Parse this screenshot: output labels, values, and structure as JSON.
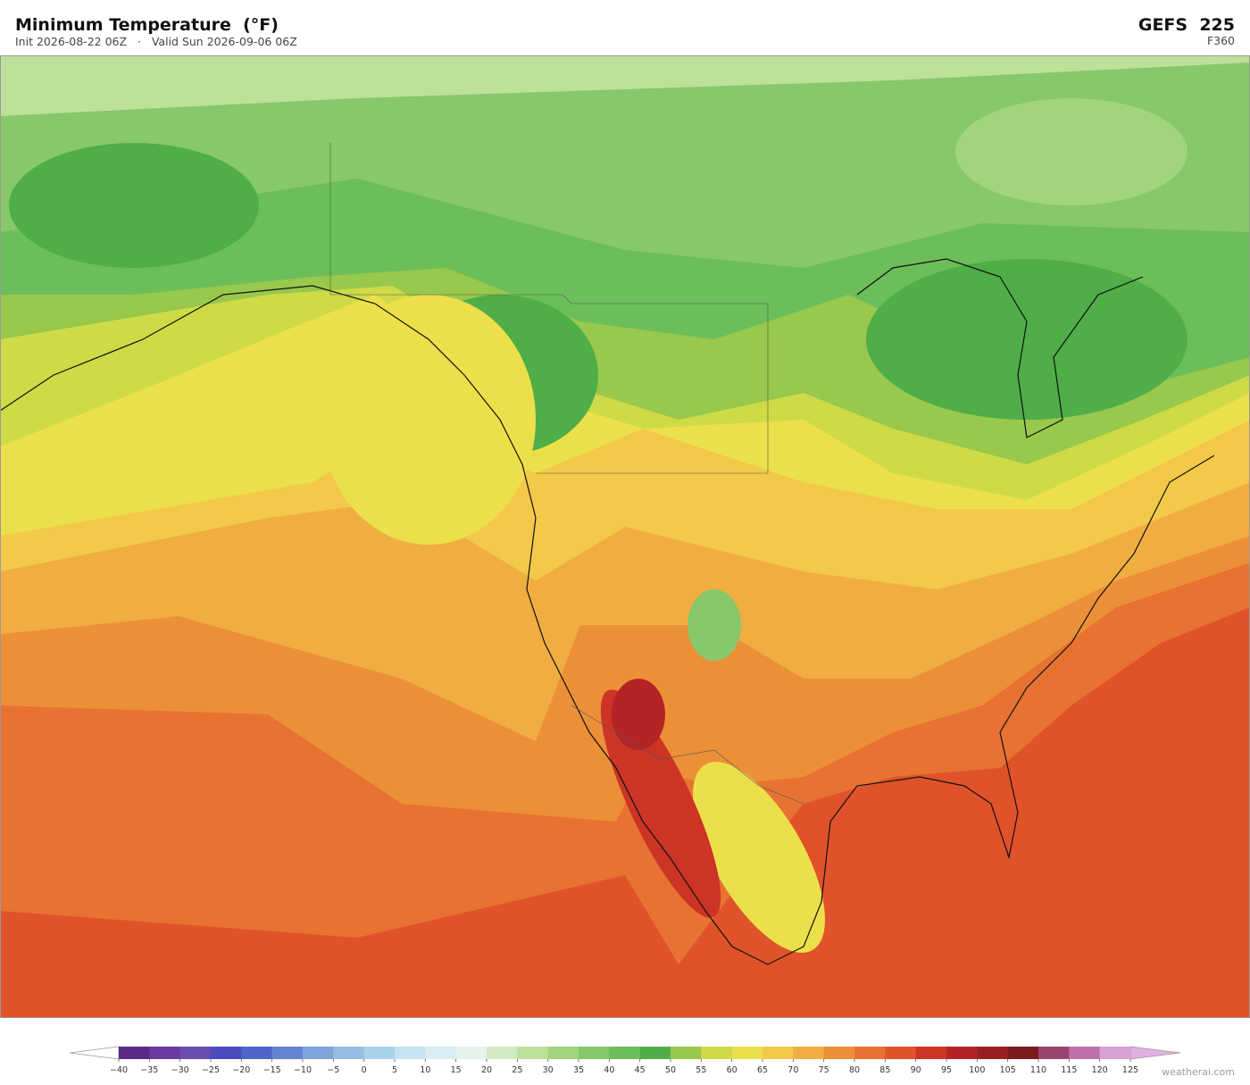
{
  "header": {
    "title": "Minimum Temperature  (°F)",
    "subtitle": "Init 2026-08-22 06Z   ·   Valid Sun 2026-09-06 06Z",
    "model": "GEFS  225",
    "forecast_hour": "F360"
  },
  "colorbar": {
    "ticks": [
      {
        "value": -40,
        "label": "−40"
      },
      {
        "value": -35,
        "label": "−35"
      },
      {
        "value": -30,
        "label": "−30"
      },
      {
        "value": -25,
        "label": "−25"
      },
      {
        "value": -20,
        "label": "−20"
      },
      {
        "value": -15,
        "label": "−15"
      },
      {
        "value": -10,
        "label": "−10"
      },
      {
        "value": -5,
        "label": "−5"
      },
      0,
      5,
      10,
      15,
      20,
      25,
      30,
      35,
      40,
      45,
      50,
      55,
      60,
      65,
      70,
      75,
      80,
      85,
      90,
      95,
      100,
      105,
      110,
      115,
      120,
      125
    ],
    "colors": [
      "#5a2a8a",
      "#6a3a9e",
      "#6b4cb0",
      "#4c4cc0",
      "#4e66cc",
      "#6384d2",
      "#7ea4da",
      "#96bee2",
      "#a8d2ea",
      "#c4e2ef",
      "#daedf2",
      "#e6f3ea",
      "#d2eac4",
      "#bde09a",
      "#a2d47e",
      "#86c86a",
      "#6cbe5a",
      "#4fae48",
      "#98c84c",
      "#cedb46",
      "#ece04a",
      "#f3c94a",
      "#f0ae42",
      "#ec9038",
      "#e87232",
      "#e0532a",
      "#cc3426",
      "#b42424",
      "#962020",
      "#7c1a20",
      "#9c4470",
      "#c070a8",
      "#d8a0d4"
    ],
    "under_color": "#ffffff",
    "over_color": "#e0b0e0"
  },
  "watermark": "weatherai.com"
}
